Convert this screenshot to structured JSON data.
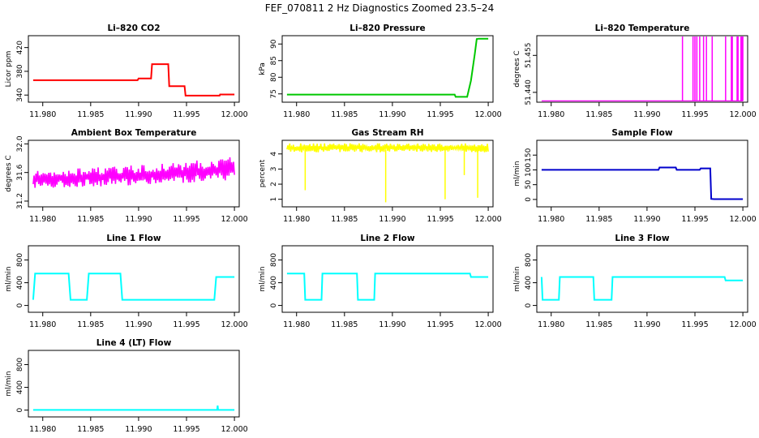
{
  "figure": {
    "title": "FEF_070811  2 Hz Diagnostics Zoomed 23.5–24"
  },
  "chart_data": [
    {
      "type": "line",
      "title": "Li–820 CO2",
      "ylabel": "Licor ppm",
      "color": "#ff0000",
      "xlim": [
        11.9785,
        12.0005
      ],
      "ylim": [
        328,
        440
      ],
      "xticks": [
        "11.980",
        "11.985",
        "11.990",
        "11.995",
        "12.000"
      ],
      "yticks": [
        "340",
        "380",
        "420"
      ],
      "series": [
        {
          "x": [
            11.979,
            11.9899,
            11.99,
            11.9913,
            11.9914,
            11.9931,
            11.9932,
            11.9948,
            11.9949,
            11.99845,
            11.9985,
            12.0
          ],
          "y": [
            365,
            365,
            368,
            368,
            392,
            392,
            355,
            355,
            339,
            339,
            341,
            341
          ]
        }
      ]
    },
    {
      "type": "line",
      "title": "Li–820 Pressure",
      "ylabel": "kPa",
      "color": "#00c800",
      "xlim": [
        11.9785,
        12.0005
      ],
      "ylim": [
        72.5,
        92.5
      ],
      "xticks": [
        "11.980",
        "11.985",
        "11.990",
        "11.995",
        "12.000"
      ],
      "yticks": [
        "75",
        "80",
        "85",
        "90"
      ],
      "series": [
        {
          "x": [
            11.979,
            11.9965,
            11.9966,
            11.9978,
            11.9982,
            11.9986,
            11.9988,
            11.999,
            12.0
          ],
          "y": [
            74.8,
            74.8,
            74.1,
            74.1,
            79,
            87,
            91.5,
            91.6,
            91.6
          ]
        }
      ]
    },
    {
      "type": "line",
      "title": "Li–820 Temperature",
      "ylabel": "degrees C",
      "color": "#ff00ff",
      "xlim": [
        11.9785,
        12.0005
      ],
      "ylim": [
        51.436,
        51.463
      ],
      "xticks": [
        "11.980",
        "11.985",
        "11.990",
        "11.995",
        "12.000"
      ],
      "yticks": [
        "51.440",
        "51.455"
      ],
      "baseline": 51.4365,
      "spikes": [
        11.9937,
        11.9948,
        11.995,
        11.9952,
        11.9955,
        11.9959,
        11.9962,
        11.9968,
        11.9982,
        11.9988,
        11.9989,
        11.9994,
        11.9995,
        11.9998,
        11.9999,
        12.0
      ]
    },
    {
      "type": "line",
      "title": "Ambient Box Temperature",
      "ylabel": "degrees C",
      "color": "#ff00ff",
      "xlim": [
        11.9785,
        12.0005
      ],
      "ylim": [
        31.12,
        32.05
      ],
      "xticks": [
        "11.980",
        "11.985",
        "11.990",
        "11.995",
        "12.000"
      ],
      "yticks": [
        "31.2",
        "31.6",
        "32.0"
      ],
      "band": {
        "low": [
          31.38,
          31.4,
          31.42,
          31.45,
          31.48
        ],
        "high": [
          31.62,
          31.66,
          31.7,
          31.75,
          31.82
        ]
      }
    },
    {
      "type": "line",
      "title": "Gas Stream RH",
      "ylabel": "percent",
      "color": "#ffff00",
      "xlim": [
        11.9785,
        12.0005
      ],
      "ylim": [
        0.5,
        4.9
      ],
      "xticks": [
        "11.980",
        "11.985",
        "11.990",
        "11.995",
        "12.000"
      ],
      "yticks": [
        "1",
        "2",
        "3",
        "4"
      ],
      "band": {
        "low": [
          4.1,
          4.1,
          4.1,
          4.1,
          4.1
        ],
        "high": [
          4.7,
          4.7,
          4.7,
          4.7,
          4.7
        ]
      },
      "dips": [
        {
          "x": 11.9809,
          "y": 1.6
        },
        {
          "x": 11.9893,
          "y": 0.8
        },
        {
          "x": 11.9955,
          "y": 1.0
        },
        {
          "x": 11.9975,
          "y": 2.6
        },
        {
          "x": 11.9989,
          "y": 1.1
        }
      ]
    },
    {
      "type": "line",
      "title": "Sample Flow",
      "ylabel": "ml/min",
      "color": "#0000cc",
      "xlim": [
        11.9785,
        12.0005
      ],
      "ylim": [
        -25,
        200
      ],
      "xticks": [
        "11.980",
        "11.985",
        "11.990",
        "11.995",
        "12.000"
      ],
      "yticks": [
        "0",
        "50",
        "100",
        "150"
      ],
      "series": [
        {
          "x": [
            11.979,
            11.9912,
            11.9913,
            11.993,
            11.9931,
            11.9955,
            11.9956,
            11.9966,
            11.9967,
            11.997,
            12.0
          ],
          "y": [
            100,
            100,
            108,
            108,
            100,
            100,
            105,
            105,
            2,
            1,
            1
          ]
        }
      ]
    },
    {
      "type": "line",
      "title": "Line 1 Flow",
      "ylabel": "ml/min",
      "color": "#00ffff",
      "xlim": [
        11.9785,
        12.0005
      ],
      "ylim": [
        -120,
        1050
      ],
      "xticks": [
        "11.980",
        "11.985",
        "11.990",
        "11.995",
        "12.000"
      ],
      "yticks": [
        "0",
        "400",
        "800"
      ],
      "series": [
        {
          "x": [
            11.979,
            11.9792,
            11.9827,
            11.9829,
            11.9846,
            11.9848,
            11.9881,
            11.9883,
            11.9979,
            11.9981,
            12.0
          ],
          "y": [
            100,
            560,
            560,
            100,
            100,
            560,
            560,
            100,
            100,
            500,
            500
          ]
        }
      ]
    },
    {
      "type": "line",
      "title": "Line 2 Flow",
      "ylabel": "ml/min",
      "color": "#00ffff",
      "xlim": [
        11.9785,
        12.0005
      ],
      "ylim": [
        -120,
        1050
      ],
      "xticks": [
        "11.980",
        "11.985",
        "11.990",
        "11.995",
        "12.000"
      ],
      "yticks": [
        "0",
        "400",
        "800"
      ],
      "series": [
        {
          "x": [
            11.979,
            11.9808,
            11.9809,
            11.9826,
            11.9827,
            11.9863,
            11.9864,
            11.9881,
            11.9882,
            11.9981,
            11.9982,
            12.0
          ],
          "y": [
            560,
            560,
            100,
            100,
            560,
            560,
            100,
            100,
            560,
            560,
            500,
            500
          ]
        }
      ]
    },
    {
      "type": "line",
      "title": "Line 3 Flow",
      "ylabel": "ml/min",
      "color": "#00ffff",
      "xlim": [
        11.9785,
        12.0005
      ],
      "ylim": [
        -120,
        1050
      ],
      "xticks": [
        "11.980",
        "11.985",
        "11.990",
        "11.995",
        "12.000"
      ],
      "yticks": [
        "0",
        "400",
        "800"
      ],
      "series": [
        {
          "x": [
            11.979,
            11.9791,
            11.9808,
            11.9809,
            11.9844,
            11.9845,
            11.9863,
            11.9864,
            11.9981,
            11.9982,
            12.0
          ],
          "y": [
            500,
            100,
            100,
            500,
            500,
            100,
            100,
            500,
            500,
            440,
            440
          ]
        }
      ]
    },
    {
      "type": "line",
      "title": "Line 4 (LT) Flow",
      "ylabel": "ml/min",
      "color": "#00ffff",
      "xlim": [
        11.9785,
        12.0005
      ],
      "ylim": [
        -120,
        1050
      ],
      "xticks": [
        "11.980",
        "11.985",
        "11.990",
        "11.995",
        "12.000"
      ],
      "yticks": [
        "0",
        "400",
        "800"
      ],
      "series": [
        {
          "x": [
            11.979,
            11.9982,
            11.99825,
            11.9983,
            12.0
          ],
          "y": [
            2,
            2,
            80,
            2,
            2
          ]
        }
      ]
    }
  ]
}
